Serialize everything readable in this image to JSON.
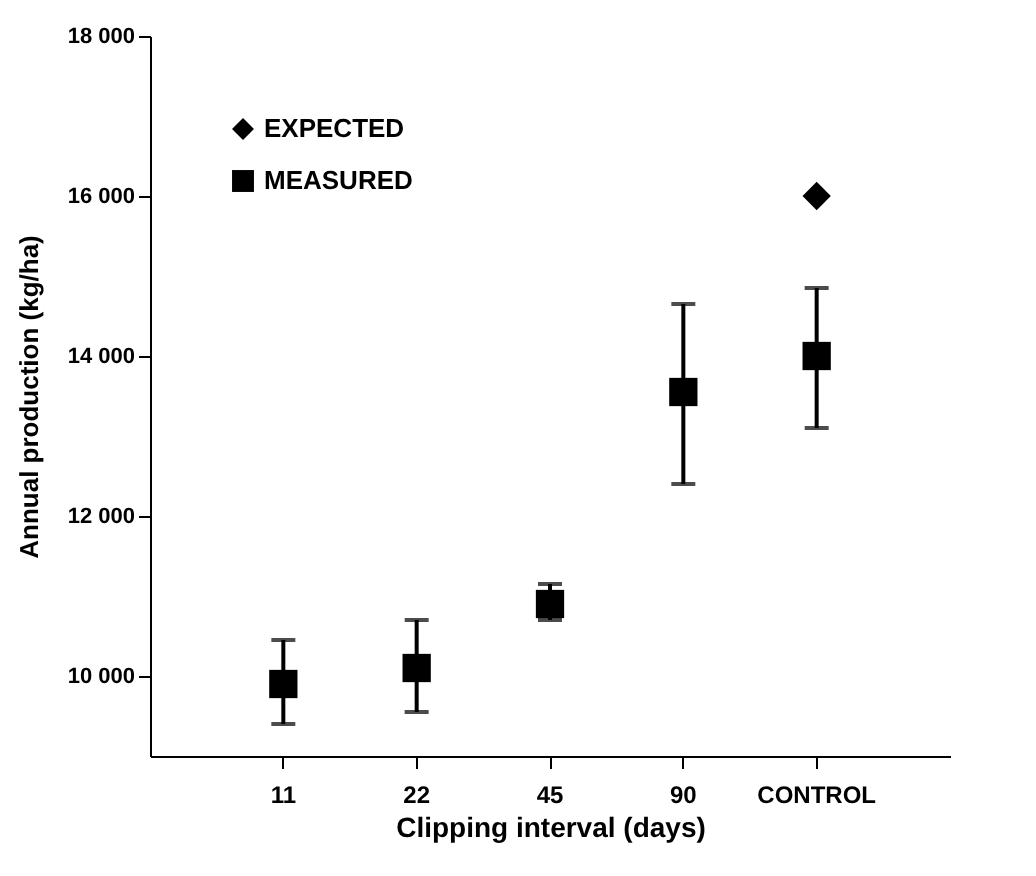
{
  "chart_data": {
    "type": "scatter",
    "xlabel": "Clipping interval (days)",
    "ylabel": "Annual production (kg/ha)",
    "categories": [
      "11",
      "22",
      "45",
      "90",
      "CONTROL"
    ],
    "series": [
      {
        "name": "EXPECTED",
        "color": "#000000",
        "marker": "diamond",
        "values": [
          null,
          null,
          null,
          null,
          16000
        ]
      },
      {
        "name": "MEASURED",
        "color": "#000000",
        "marker": "square",
        "values": [
          9900,
          10100,
          10900,
          13550,
          14000
        ],
        "errors": [
          [
            9400,
            10450
          ],
          [
            9550,
            10700
          ],
          [
            10700,
            11150
          ],
          [
            12400,
            14650
          ],
          [
            13100,
            14850
          ]
        ]
      }
    ],
    "ylim": [
      9000,
      18000
    ],
    "yticks": [
      {
        "value": 10000,
        "label": "10 000"
      },
      {
        "value": 12000,
        "label": "12 000"
      },
      {
        "value": 14000,
        "label": "14 000"
      },
      {
        "value": 16000,
        "label": "16 000"
      },
      {
        "value": 18000,
        "label": "18 000"
      }
    ],
    "grid": false,
    "legend": "top left"
  }
}
